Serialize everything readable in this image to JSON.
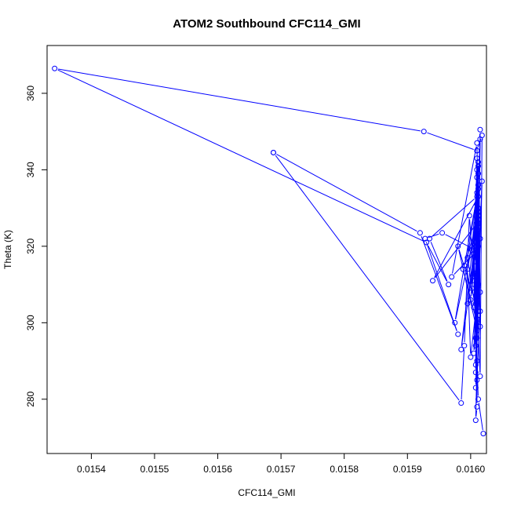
{
  "chart_data": {
    "type": "line",
    "title": "ATOM2 Southbound CFC114_GMI",
    "xlabel": "CFC114_GMI",
    "ylabel": "Theta (K)",
    "xlim": [
      0.01533,
      0.016025
    ],
    "ylim": [
      265.8,
      372.5
    ],
    "xticks": [
      "0.0154",
      "0.0155",
      "0.0156",
      "0.0157",
      "0.0158",
      "0.0159",
      "0.0160"
    ],
    "yticks": [
      "280",
      "300",
      "320",
      "340",
      "360"
    ],
    "series_color": "#0000ff",
    "marker": "open-circle",
    "grid": false,
    "series": [
      {
        "x": [
          0.01601,
          0.015926,
          0.015342,
          0.01593,
          0.015965,
          0.015935,
          0.01601,
          0.01599,
          0.015975,
          0.016012,
          0.016005,
          0.016015,
          0.016008,
          0.016018,
          0.01601,
          0.016,
          0.015995,
          0.016012,
          0.016008,
          0.016005,
          0.01597,
          0.01601,
          0.016012,
          0.016002,
          0.01601,
          0.016012,
          0.016008,
          0.016012,
          0.016002,
          0.01601,
          0.016015,
          0.01601,
          0.016005,
          0.016012,
          0.016015,
          0.01601,
          0.016012,
          0.016008,
          0.01601,
          0.01601,
          0.016008,
          0.01601,
          0.016012,
          0.01602
        ],
        "y": [
          345.0,
          350.0,
          366.5,
          321.0,
          310.0,
          322.0,
          333.0,
          315.0,
          300.0,
          328.0,
          304.0,
          322.0,
          283.0,
          337.0,
          306.0,
          291.0,
          314.0,
          329.0,
          296.0,
          318.0,
          312.0,
          347.0,
          325.0,
          309.0,
          338.0,
          320.0,
          294.0,
          342.0,
          319.0,
          331.0,
          303.0,
          285.0,
          311.0,
          336.0,
          299.0,
          326.0,
          341.0,
          307.0,
          324.0,
          278.0,
          274.5,
          290.0,
          280.0,
          271.0
        ]
      },
      {
        "x": [
          0.015688,
          0.01592,
          0.01598,
          0.015928,
          0.015955,
          0.016008,
          0.015995,
          0.01601,
          0.01594,
          0.016012,
          0.015985,
          0.016008,
          0.016,
          0.016012,
          0.015988,
          0.01601,
          0.016005,
          0.016012,
          0.016008,
          0.01601,
          0.016012,
          0.016015,
          0.01601,
          0.016012,
          0.016015
        ],
        "y": [
          344.5,
          323.5,
          297.0,
          322.0,
          323.5,
          319.0,
          305.0,
          326.0,
          311.0,
          333.0,
          293.0,
          320.0,
          306.0,
          327.0,
          314.0,
          300.0,
          318.0,
          335.0,
          287.0,
          331.0,
          310.0,
          348.0,
          329.0,
          303.0,
          350.5
        ]
      },
      {
        "x": [
          0.015688,
          0.015985,
          0.01599,
          0.015998,
          0.016005,
          0.01601,
          0.01598,
          0.016008,
          0.016012,
          0.015995,
          0.01601,
          0.016012,
          0.016008,
          0.01601,
          0.016005,
          0.016012,
          0.01601,
          0.016008,
          0.016012,
          0.016015,
          0.016005,
          0.016012,
          0.016008,
          0.01601,
          0.016012,
          0.01601,
          0.016008,
          0.016015,
          0.016018,
          0.01601
        ],
        "y": [
          344.5,
          279.0,
          294.0,
          328.0,
          312.0,
          298.0,
          320.0,
          305.0,
          336.0,
          317.0,
          301.0,
          325.0,
          289.0,
          343.0,
          313.0,
          330.0,
          296.0,
          321.0,
          339.0,
          308.0,
          292.0,
          326.0,
          316.0,
          340.0,
          302.0,
          334.0,
          318.0,
          286.0,
          349.0,
          345.0
        ]
      }
    ]
  }
}
